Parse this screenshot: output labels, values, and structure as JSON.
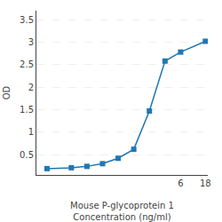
{
  "chart_data": {
    "type": "line",
    "x": [
      0.016,
      0.047,
      0.094,
      0.188,
      0.375,
      0.75,
      1.5,
      3,
      6,
      18
    ],
    "values": [
      0.19,
      0.21,
      0.24,
      0.3,
      0.42,
      0.62,
      1.47,
      2.58,
      2.78,
      3.02
    ],
    "marker": "square",
    "xlabel": "Mouse P-glycoprotein 1\nConcentration (ng/ml)",
    "ylabel": "OD",
    "log": "x",
    "xlim": [
      0.01,
      20
    ],
    "xticks": [
      6,
      18
    ],
    "ylim": [
      0.05,
      3.7
    ],
    "yticks": [
      0.5,
      1,
      1.5,
      2,
      2.5,
      3,
      3.5
    ],
    "grid": "y"
  }
}
